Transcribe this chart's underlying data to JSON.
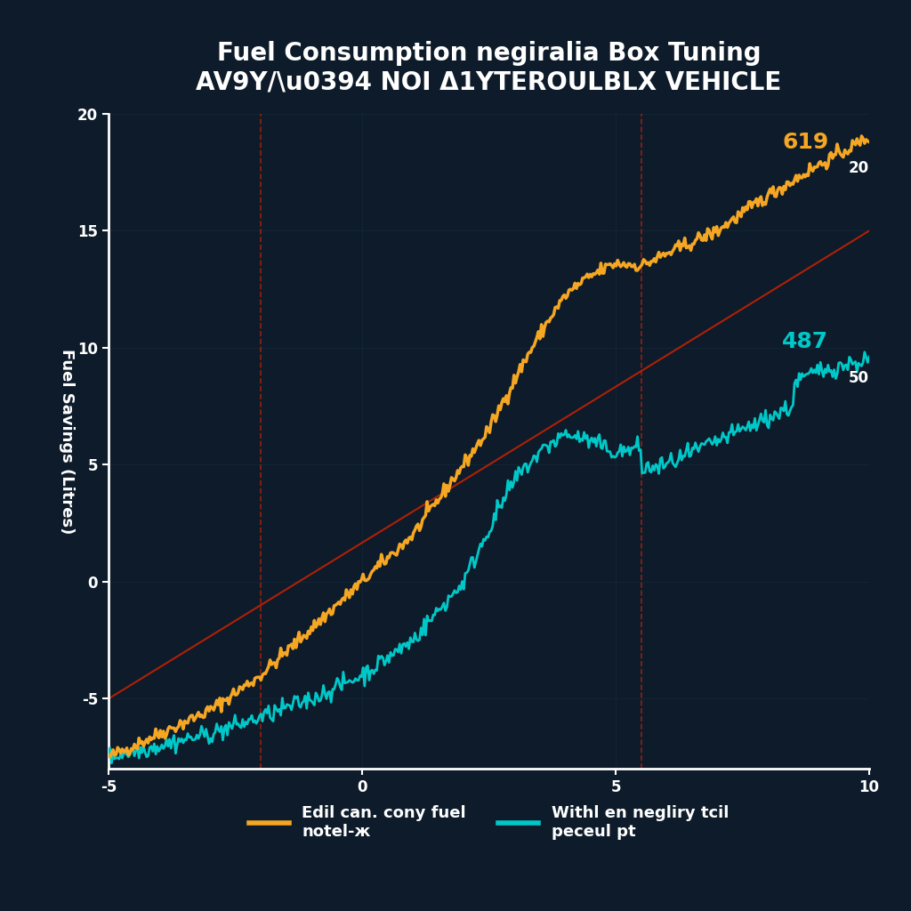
{
  "title_line1": "Fuel Consumption negiralia Box Tuning",
  "title_line2": "AV9Y/\\u0394 NOI Δ1YTEROULBLX VEHICLE",
  "bg_color": "#0d1b2a",
  "grid_color": "#1e3a4a",
  "xlabel": "",
  "ylabel": "Fuel Savings (Litres)",
  "xlim": [
    -5,
    10
  ],
  "ylim": [
    -8,
    20
  ],
  "orange_color": "#f5a623",
  "cyan_color": "#00c8c8",
  "red_color": "#cc2200",
  "annotation1_val": "619",
  "annotation1_sub": "20",
  "annotation2_val": "487",
  "annotation2_sub": "50",
  "legend_label1": "Edil can. cony fuel\nnotel-ж",
  "legend_label2": "Withl en negliry tcil\npeceul pt",
  "vline1_x": -2.0,
  "vline2_x": 5.5,
  "title_color": "#ffffff",
  "tick_color": "#ffffff",
  "axis_color": "#ffffff"
}
